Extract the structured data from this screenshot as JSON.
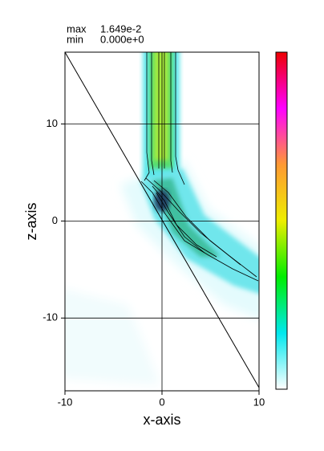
{
  "chart_data": {
    "type": "field",
    "xlabel": "x-axis",
    "ylabel": "z-axis",
    "xlim": [
      -10,
      10
    ],
    "ylim": [
      -17.5,
      17.4
    ],
    "xticks": [
      -10,
      0,
      10
    ],
    "yticks": [
      -10,
      0,
      10
    ],
    "grid": true,
    "colorbar": {
      "max_label": "max",
      "min_label": "min",
      "max": {
        "value": 0.01649,
        "label": "1.649e-2"
      },
      "min": {
        "value": 0,
        "label": "0.000e+0"
      },
      "colors": [
        "#ffffff",
        "#00e8ee",
        "#00ee00",
        "#eeee00",
        "#ff9933",
        "#ff00ff",
        "#ee0000"
      ]
    }
  }
}
